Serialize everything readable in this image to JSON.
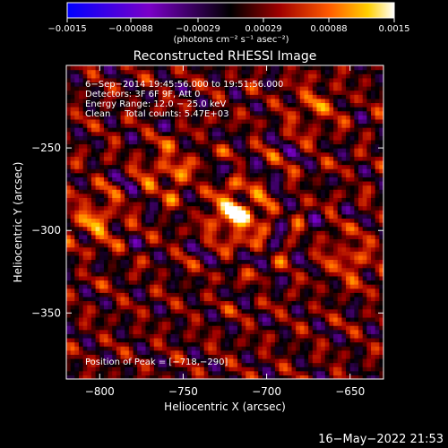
{
  "chart_data": {
    "type": "heatmap",
    "title": "Reconstructed RHESSI Image",
    "xlabel": "Heliocentric X (arcsec)",
    "ylabel": "Heliocentric Y (arcsec)",
    "xlim": [
      -820,
      -630
    ],
    "ylim": [
      -390,
      -200
    ],
    "x_ticks": [
      -800,
      -750,
      -700,
      -650
    ],
    "x_tick_labels": [
      "−800",
      "−750",
      "−700",
      "−650"
    ],
    "y_ticks": [
      -250,
      -300,
      -350
    ],
    "y_tick_labels": [
      "−250",
      "−300",
      "−350"
    ],
    "colorbar": {
      "range": [
        -0.0015,
        0.0015
      ],
      "tick_labels": [
        "−0.0015",
        "−0.00088",
        "−0.00029",
        "0.00029",
        "0.00088",
        "0.0015"
      ],
      "units_label": "(photons cm⁻² s⁻¹ asec⁻²)"
    },
    "annotations": [
      "6−Sep−2014 19:45:56.000 to 19:51:56.000",
      "Detectors: 3F 6F 9F, Att 0",
      "Energy Range: 12.0 − 25.0 keV",
      "Clean     Total counts: 5.47E+03"
    ],
    "peak_label": "Position of Peak = [−718,−290]",
    "peak": [
      -718,
      -290
    ],
    "secondary_sources": [
      {
        "x": -803,
        "y": -293,
        "rel": 0.55
      },
      {
        "x": -758,
        "y": -263,
        "rel": 0.5
      },
      {
        "x": -650,
        "y": -317,
        "rel": 0.45
      },
      {
        "x": -672,
        "y": -225,
        "rel": 0.4
      }
    ]
  },
  "footer": {
    "timestamp": "16−May−2022 21:53"
  }
}
